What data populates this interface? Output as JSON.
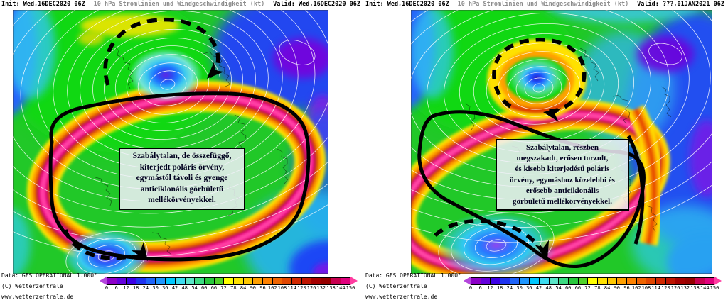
{
  "panels": [
    {
      "title": {
        "init": "Init: Wed,16DEC2020 06Z",
        "subject": "10 hPa Stromlinien und Windgeschwindigkeit (kt)",
        "valid": "Valid: Wed,16DEC2020 06Z"
      },
      "annotation_box": {
        "lines": [
          "Szabálytalan, de összefüggő,",
          "kiterjedt poláris örvény,",
          "egymástól távoli és gyenge",
          "anticiklonális görbületű",
          "mellékörvényekkel."
        ]
      }
    },
    {
      "title": {
        "init": "Init: Wed,16DEC2020 06Z",
        "subject": "10 hPa Stromlinien und Windgeschwindigkeit (kt)",
        "valid": "Valid: ???,01JAN2021 06Z"
      },
      "annotation_box": {
        "lines": [
          "Szabálytalan, részben",
          "megszakadt, erősen torzult,",
          "és kisebb kiterjedésű poláris",
          "örvény, egymáshoz közelebbi és",
          "erősebb anticiklonális",
          "görbületű mellékörvényekkel."
        ]
      }
    }
  ],
  "credits": {
    "line1": "Data: GFS OPERATIONAL 1.000°",
    "line2": "(C) Wetterzentrale",
    "line3": "www.wetterzentrale.de"
  },
  "legend": {
    "unit": "kt",
    "ticks": [
      0,
      6,
      12,
      18,
      24,
      30,
      36,
      42,
      48,
      54,
      60,
      66,
      72,
      78,
      84,
      90,
      96,
      102,
      108,
      114,
      120,
      126,
      132,
      138,
      144,
      150
    ],
    "cell_colors": [
      "#8C00C8",
      "#6400DC",
      "#3C00E6",
      "#1E32F0",
      "#1E64FA",
      "#1E96FF",
      "#00C8FF",
      "#3CDCF0",
      "#5AE6C8",
      "#3CDC82",
      "#28C83C",
      "#50D228",
      "#FFFF00",
      "#FFE100",
      "#FFC800",
      "#FFA000",
      "#FF8200",
      "#F06400",
      "#E14600",
      "#D22800",
      "#BE1400",
      "#A50000",
      "#960000",
      "#C80050",
      "#E1007D"
    ],
    "arrow_left_color": "#B446DC",
    "arrow_right_color": "#FF3CA0"
  }
}
